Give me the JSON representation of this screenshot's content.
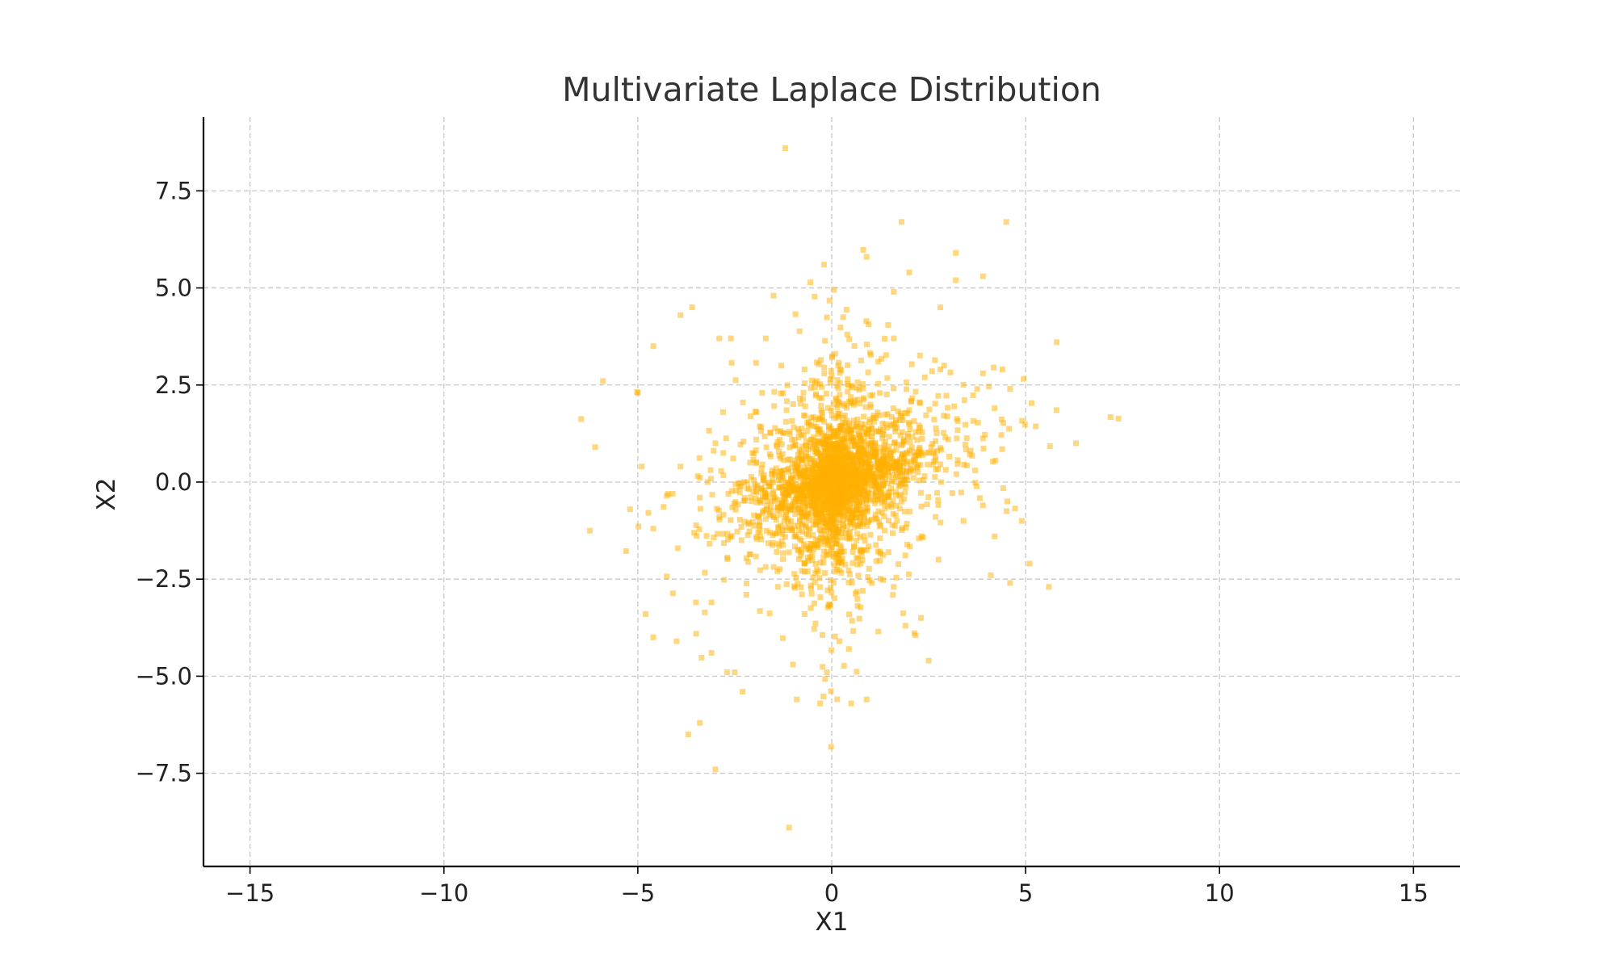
{
  "chart_data": {
    "type": "scatter",
    "title": "Multivariate Laplace Distribution",
    "xlabel": "X1",
    "ylabel": "X2",
    "xlim": [
      -16.2,
      16.2
    ],
    "ylim": [
      -9.9,
      9.4
    ],
    "xticks": [
      -15,
      -10,
      -5,
      0,
      5,
      10,
      15
    ],
    "xtick_labels": [
      "−15",
      "−10",
      "−5",
      "0",
      "5",
      "10",
      "15"
    ],
    "yticks": [
      -7.5,
      -5.0,
      -2.5,
      0.0,
      2.5,
      5.0,
      7.5
    ],
    "ytick_labels": [
      "−7.5",
      "−5.0",
      "−2.5",
      "0.0",
      "2.5",
      "5.0",
      "7.5"
    ],
    "grid": true,
    "marker_color": "#ffb000",
    "marker_alpha": 0.5,
    "dense_cluster": {
      "count": 2600,
      "center": [
        0.1,
        0.0
      ],
      "scale": [
        0.85,
        0.85
      ],
      "correlation": 0.25
    },
    "points": [
      [
        -1.2,
        8.6
      ],
      [
        1.8,
        6.7
      ],
      [
        4.5,
        6.7
      ],
      [
        3.2,
        5.9
      ],
      [
        0.9,
        5.8
      ],
      [
        -0.2,
        5.6
      ],
      [
        3.2,
        5.2
      ],
      [
        3.9,
        5.3
      ],
      [
        2.0,
        5.4
      ],
      [
        5.8,
        3.6
      ],
      [
        6.3,
        1.0
      ],
      [
        -6.1,
        0.9
      ],
      [
        -5.9,
        2.6
      ],
      [
        -5.0,
        2.3
      ],
      [
        -4.6,
        3.5
      ],
      [
        -3.6,
        4.5
      ],
      [
        -3.9,
        4.3
      ],
      [
        -1.5,
        4.8
      ],
      [
        -2.9,
        3.7
      ],
      [
        -2.6,
        3.7
      ],
      [
        2.8,
        4.5
      ],
      [
        1.6,
        4.9
      ],
      [
        -5.2,
        -0.7
      ],
      [
        -4.9,
        0.4
      ],
      [
        -4.6,
        -1.2
      ],
      [
        -4.8,
        -3.4
      ],
      [
        -4.6,
        -4.0
      ],
      [
        -4.0,
        -4.1
      ],
      [
        -3.5,
        -3.1
      ],
      [
        -3.1,
        -3.1
      ],
      [
        -3.1,
        -4.4
      ],
      [
        -2.7,
        -4.9
      ],
      [
        -2.5,
        -4.9
      ],
      [
        -2.3,
        -5.4
      ],
      [
        -3.4,
        -6.2
      ],
      [
        -3.7,
        -6.5
      ],
      [
        -3.0,
        -7.4
      ],
      [
        -1.1,
        -8.9
      ],
      [
        -0.9,
        -5.6
      ],
      [
        -0.3,
        -5.7
      ],
      [
        0.5,
        -5.7
      ],
      [
        0.9,
        -5.6
      ],
      [
        -1.0,
        -4.7
      ],
      [
        2.5,
        -4.6
      ],
      [
        5.1,
        -2.1
      ],
      [
        5.6,
        -2.7
      ],
      [
        4.6,
        -2.6
      ],
      [
        4.1,
        -2.4
      ],
      [
        4.6,
        2.4
      ],
      [
        4.4,
        2.9
      ],
      [
        3.9,
        2.8
      ],
      [
        4.2,
        1.9
      ],
      [
        4.9,
        -1.0
      ],
      [
        4.2,
        -1.4
      ],
      [
        0.2,
        -4.1
      ],
      [
        -0.7,
        -3.4
      ],
      [
        1.9,
        -3.7
      ],
      [
        2.3,
        -3.5
      ],
      [
        -3.2,
        0.0
      ],
      [
        -3.4,
        -0.4
      ],
      [
        -3.9,
        0.4
      ],
      [
        -4.1,
        -0.3
      ],
      [
        -3.0,
        1.0
      ],
      [
        -2.8,
        1.8
      ],
      [
        3.7,
        0.3
      ],
      [
        3.9,
        -0.6
      ],
      [
        3.4,
        -1.0
      ],
      [
        2.8,
        2.9
      ],
      [
        2.9,
        3.0
      ],
      [
        -1.7,
        3.7
      ],
      [
        -1.3,
        3.0
      ],
      [
        -0.7,
        2.9
      ],
      [
        0.4,
        3.8
      ],
      [
        1.2,
        3.1
      ],
      [
        1.6,
        3.7
      ],
      [
        2.4,
        2.7
      ],
      [
        -2.2,
        -2.9
      ],
      [
        -1.4,
        -2.3
      ],
      [
        0.8,
        -2.8
      ],
      [
        1.6,
        -2.7
      ]
    ]
  }
}
